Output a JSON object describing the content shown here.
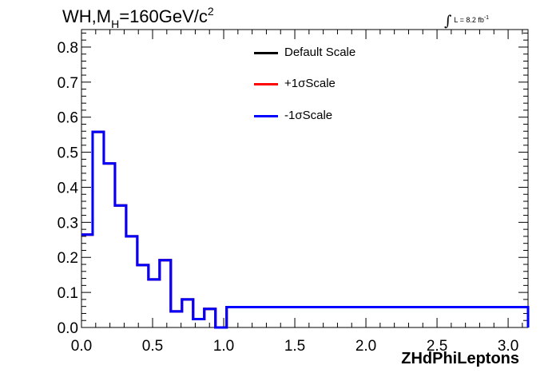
{
  "title": {
    "prefix": "WH,M",
    "sub": "H",
    "value": "=160GeV/c",
    "sup": "2"
  },
  "luminosity": {
    "integral": "∫",
    "text": "L = 8.2 fb",
    "sup": "-1"
  },
  "chart_data": {
    "type": "line",
    "step": true,
    "xlabel": "ZHdPhiLeptons",
    "ylabel": "",
    "xlim": [
      0,
      3.14
    ],
    "ylim": [
      0,
      0.85
    ],
    "x_ticks": [
      0.0,
      0.5,
      1.0,
      1.5,
      2.0,
      2.5,
      3.0
    ],
    "x_tick_labels": [
      "0.0",
      "0.5",
      "1.0",
      "1.5",
      "2.0",
      "2.5",
      "3.0"
    ],
    "y_ticks": [
      0.0,
      0.1,
      0.2,
      0.3,
      0.4,
      0.5,
      0.6,
      0.7,
      0.8
    ],
    "y_tick_labels": [
      "0.0",
      "0.1",
      "0.2",
      "0.3",
      "0.4",
      "0.5",
      "0.6",
      "0.7",
      "0.8"
    ],
    "bin_edges": [
      0,
      0.0785,
      0.157,
      0.2355,
      0.314,
      0.3925,
      0.471,
      0.5495,
      0.628,
      0.7065,
      0.785,
      0.8635,
      0.942,
      1.0205,
      3.14
    ],
    "series": [
      {
        "name": "Default Scale",
        "color": "#000000",
        "values": [
          0.265,
          0.558,
          0.468,
          0.348,
          0.26,
          0.178,
          0.137,
          0.192,
          0.046,
          0.08,
          0.024,
          0.053,
          0.0,
          0.058,
          0.0
        ]
      },
      {
        "name": "+1σScale",
        "color": "#ff0000",
        "values": [
          0.265,
          0.558,
          0.468,
          0.348,
          0.26,
          0.178,
          0.137,
          0.192,
          0.046,
          0.08,
          0.024,
          0.053,
          0.0,
          0.058,
          0.0
        ]
      },
      {
        "name": "-1σScale",
        "color": "#0000ff",
        "values": [
          0.265,
          0.558,
          0.468,
          0.348,
          0.26,
          0.178,
          0.137,
          0.192,
          0.046,
          0.08,
          0.024,
          0.053,
          0.0,
          0.058,
          0.0
        ]
      }
    ],
    "legend": "top-center",
    "grid": false
  }
}
